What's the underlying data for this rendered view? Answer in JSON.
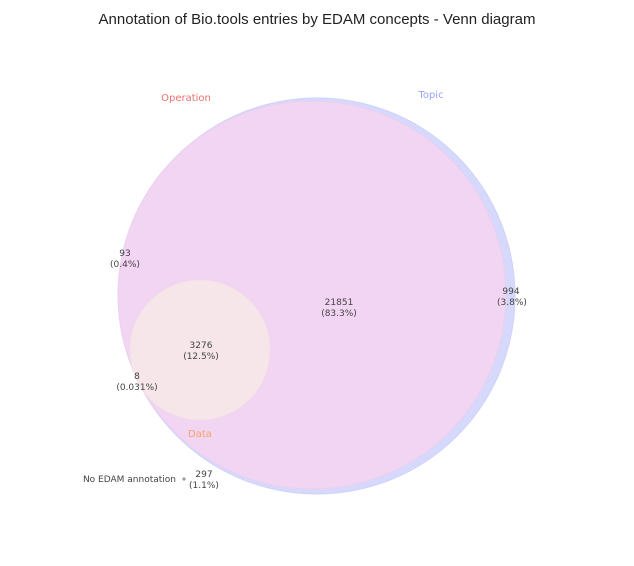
{
  "title": "Annotation of Bio.tools entries by EDAM concepts - Venn diagram",
  "sets": {
    "topic": {
      "label": "Topic",
      "color": "#9aa3f5",
      "fill": "#d6d9fb"
    },
    "operation": {
      "label": "Operation",
      "color": "#ee6f6f",
      "fill": "#f2d4f3"
    },
    "data": {
      "label": "Data",
      "color": "#f2a66b",
      "fill": "#f6e6ea"
    }
  },
  "regions": {
    "topic_only": {
      "count": "994",
      "percent": "(3.8%)"
    },
    "topic_operation": {
      "count": "21851",
      "percent": "(83.3%)"
    },
    "operation_only": {
      "count": "93",
      "percent": "(0.4%)"
    },
    "all_three": {
      "count": "3276",
      "percent": "(12.5%)"
    },
    "operation_data": {
      "count": "8",
      "percent": "(0.031%)"
    }
  },
  "no_annotation": {
    "label": "No EDAM annotation",
    "count": "297",
    "percent": "(1.1%)",
    "marker_color": "#999999"
  }
}
